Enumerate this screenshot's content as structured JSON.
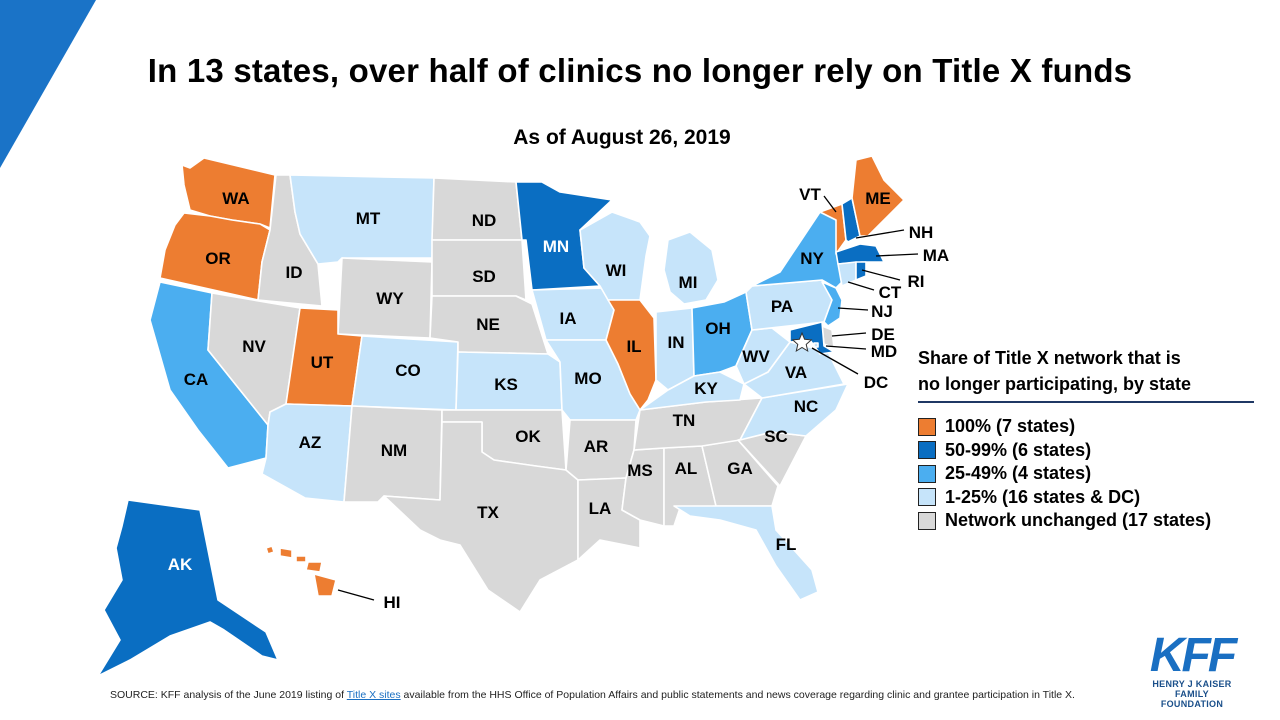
{
  "title": "In 13 states, over half of clinics no longer rely on Title X funds",
  "subtitle": "As of August 26, 2019",
  "colors": {
    "c100": "#ED7D31",
    "c50": "#0A6EC2",
    "c25": "#4BAEF0",
    "c1": "#C6E4FA",
    "c0": "#D8D8D8",
    "corner": "#1a73c7"
  },
  "legend": {
    "title_line1": "Share of Title X network that is",
    "title_line2": "no longer participating, by state",
    "items": [
      {
        "label": "100% (7 states)",
        "color": "#ED7D31"
      },
      {
        "label": "50-99% (6 states)",
        "color": "#0A6EC2"
      },
      {
        "label": "25-49% (4 states)",
        "color": "#4BAEF0"
      },
      {
        "label": "1-25% (16 states & DC)",
        "color": "#C6E4FA"
      },
      {
        "label": "Network unchanged (17 states)",
        "color": "#D8D8D8"
      }
    ]
  },
  "states": {
    "WA": {
      "label": "WA",
      "category": "100%"
    },
    "OR": {
      "label": "OR",
      "category": "100%"
    },
    "UT": {
      "label": "UT",
      "category": "100%"
    },
    "IL": {
      "label": "IL",
      "category": "100%"
    },
    "VT": {
      "label": "VT",
      "category": "100%"
    },
    "ME": {
      "label": "ME",
      "category": "100%"
    },
    "HI": {
      "label": "HI",
      "category": "100%"
    },
    "MN": {
      "label": "MN",
      "category": "50-99%"
    },
    "AK": {
      "label": "AK",
      "category": "50-99%"
    },
    "NH": {
      "label": "NH",
      "category": "50-99%"
    },
    "MA": {
      "label": "MA",
      "category": "50-99%"
    },
    "RI": {
      "label": "RI",
      "category": "50-99%"
    },
    "MD": {
      "label": "MD",
      "category": "50-99%"
    },
    "CA": {
      "label": "CA",
      "category": "25-49%"
    },
    "NY": {
      "label": "NY",
      "category": "25-49%"
    },
    "OH": {
      "label": "OH",
      "category": "25-49%"
    },
    "NJ": {
      "label": "NJ",
      "category": "25-49%"
    },
    "MT": {
      "label": "MT",
      "category": "1-25%"
    },
    "CO": {
      "label": "CO",
      "category": "1-25%"
    },
    "AZ": {
      "label": "AZ",
      "category": "1-25%"
    },
    "KS": {
      "label": "KS",
      "category": "1-25%"
    },
    "IA": {
      "label": "IA",
      "category": "1-25%"
    },
    "MO": {
      "label": "MO",
      "category": "1-25%"
    },
    "WI": {
      "label": "WI",
      "category": "1-25%"
    },
    "MI": {
      "label": "MI",
      "category": "1-25%"
    },
    "IN": {
      "label": "IN",
      "category": "1-25%"
    },
    "KY": {
      "label": "KY",
      "category": "1-25%"
    },
    "WV": {
      "label": "WV",
      "category": "1-25%"
    },
    "VA": {
      "label": "VA",
      "category": "1-25%"
    },
    "NC": {
      "label": "NC",
      "category": "1-25%"
    },
    "PA": {
      "label": "PA",
      "category": "1-25%"
    },
    "FL": {
      "label": "FL",
      "category": "1-25%"
    },
    "CT": {
      "label": "CT",
      "category": "1-25%"
    },
    "DC": {
      "label": "DC",
      "category": "1-25%"
    },
    "DE": {
      "label": "DE",
      "category": "unchanged"
    },
    "ID": {
      "label": "ID",
      "category": "unchanged"
    },
    "NV": {
      "label": "NV",
      "category": "unchanged"
    },
    "WY": {
      "label": "WY",
      "category": "unchanged"
    },
    "ND": {
      "label": "ND",
      "category": "unchanged"
    },
    "SD": {
      "label": "SD",
      "category": "unchanged"
    },
    "NE": {
      "label": "NE",
      "category": "unchanged"
    },
    "NM": {
      "label": "NM",
      "category": "unchanged"
    },
    "OK": {
      "label": "OK",
      "category": "unchanged"
    },
    "TX": {
      "label": "TX",
      "category": "unchanged"
    },
    "AR": {
      "label": "AR",
      "category": "unchanged"
    },
    "LA": {
      "label": "LA",
      "category": "unchanged"
    },
    "MS": {
      "label": "MS",
      "category": "unchanged"
    },
    "AL": {
      "label": "AL",
      "category": "unchanged"
    },
    "GA": {
      "label": "GA",
      "category": "unchanged"
    },
    "TN": {
      "label": "TN",
      "category": "unchanged"
    },
    "SC": {
      "label": "SC",
      "category": "unchanged"
    }
  },
  "logo": {
    "mark": "KFF",
    "line1": "HENRY J KAISER",
    "line2": "FAMILY FOUNDATION"
  },
  "source": {
    "prefix": "SOURCE: KFF analysis of the June 2019 listing of ",
    "link": "Title X sites",
    "suffix": " available from the HHS Office of Population Affairs and public statements and news coverage regarding clinic and grantee participation in Title X."
  }
}
